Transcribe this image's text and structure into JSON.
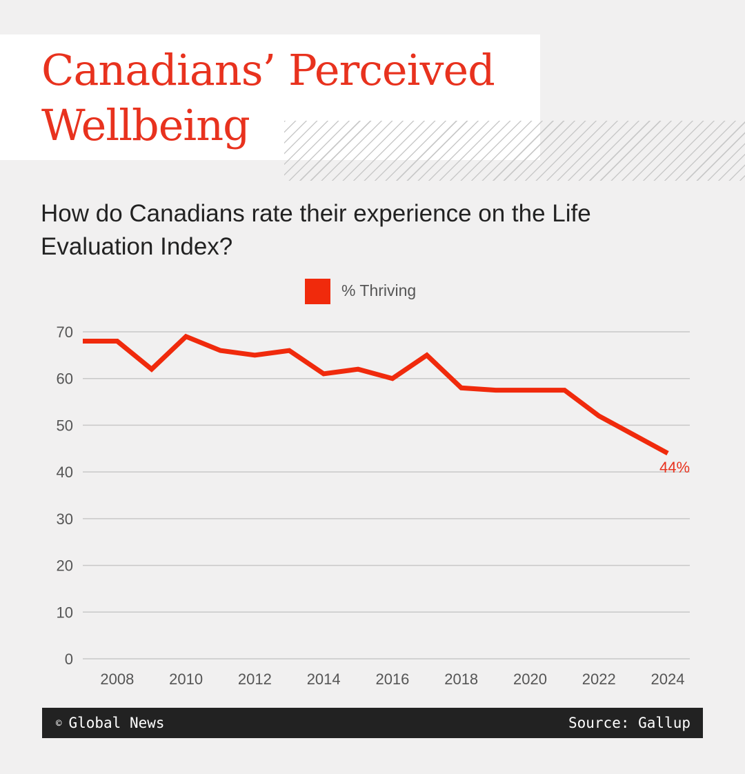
{
  "header": {
    "title": "Canadians’ Perceived\nWellbeing",
    "subtitle": "How do Canadians rate their experience on the Life Evaluation Index?"
  },
  "footer": {
    "copyright_icon": "copyright-icon",
    "credit": "Global News",
    "source": "Source: Gallup"
  },
  "colors": {
    "accent": "#e8321e",
    "line": "#f02a0c",
    "footer_bg": "#222222",
    "background": "#f1f0f0"
  },
  "chart_data": {
    "type": "line",
    "title": "",
    "xlabel": "",
    "ylabel": "",
    "legend_position": "top-center",
    "grid": true,
    "x": [
      2007,
      2008,
      2009,
      2010,
      2011,
      2012,
      2013,
      2014,
      2015,
      2016,
      2017,
      2018,
      2019,
      2020,
      2021,
      2022,
      2023,
      2024
    ],
    "series": [
      {
        "name": "% Thriving",
        "color": "#f02a0c",
        "values": [
          68,
          68,
          62,
          69,
          66,
          65,
          66,
          61,
          62,
          60,
          65,
          58,
          57.5,
          57.5,
          57.5,
          52,
          48,
          44
        ]
      }
    ],
    "ylim": [
      0,
      70
    ],
    "yticks": [
      0,
      10,
      20,
      30,
      40,
      50,
      60,
      70
    ],
    "xticks": [
      2008,
      2010,
      2012,
      2014,
      2016,
      2018,
      2020,
      2022,
      2024
    ],
    "end_label": "44%"
  }
}
